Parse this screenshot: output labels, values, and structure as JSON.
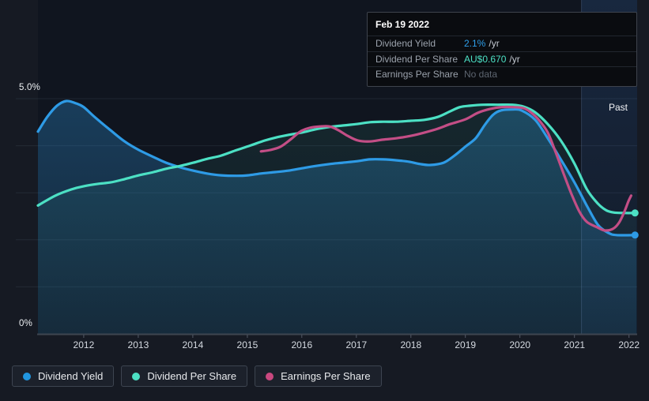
{
  "tooltip": {
    "date": "Feb 19 2022",
    "rows": [
      {
        "label": "Dividend Yield",
        "value": "2.1%",
        "suffix": "/yr",
        "value_color": "#2e9fe9"
      },
      {
        "label": "Dividend Per Share",
        "value": "AU$0.670",
        "suffix": "/yr",
        "value_color": "#4ce0c4"
      },
      {
        "label": "Earnings Per Share",
        "value": "No data",
        "suffix": "",
        "value_color": "#5d6570"
      }
    ]
  },
  "legend": [
    {
      "label": "Dividend Yield",
      "color": "#2196e0"
    },
    {
      "label": "Dividend Per Share",
      "color": "#4ce0c4"
    },
    {
      "label": "Earnings Per Share",
      "color": "#c9487f"
    }
  ],
  "chart_data": {
    "type": "line",
    "title": "",
    "xlabel": "",
    "ylabel": "",
    "y_unit": "%",
    "x_range": [
      2011.16,
      2022.15
    ],
    "y_range": [
      0,
      5
    ],
    "x_ticks": [
      "2012",
      "2013",
      "2014",
      "2015",
      "2016",
      "2017",
      "2018",
      "2019",
      "2020",
      "2021",
      "2022"
    ],
    "y_tick_labels": [
      "5.0%",
      "0%"
    ],
    "grid": true,
    "band_label": "Past",
    "band_start": 2021.13,
    "legend_position": "bottom-left",
    "series": [
      {
        "name": "Dividend Yield",
        "color": "#2e9be6",
        "fill": "gradient",
        "end_dot": true,
        "points": [
          [
            2011.16,
            4.3
          ],
          [
            2011.33,
            4.61
          ],
          [
            2011.51,
            4.85
          ],
          [
            2011.68,
            4.95
          ],
          [
            2011.86,
            4.9
          ],
          [
            2012.0,
            4.82
          ],
          [
            2012.2,
            4.61
          ],
          [
            2012.49,
            4.33
          ],
          [
            2012.75,
            4.09
          ],
          [
            2013.01,
            3.91
          ],
          [
            2013.28,
            3.76
          ],
          [
            2013.51,
            3.64
          ],
          [
            2013.77,
            3.54
          ],
          [
            2014.01,
            3.47
          ],
          [
            2014.26,
            3.41
          ],
          [
            2014.52,
            3.37
          ],
          [
            2014.81,
            3.36
          ],
          [
            2015.01,
            3.37
          ],
          [
            2015.25,
            3.41
          ],
          [
            2015.51,
            3.44
          ],
          [
            2015.75,
            3.47
          ],
          [
            2016.0,
            3.52
          ],
          [
            2016.26,
            3.57
          ],
          [
            2016.51,
            3.61
          ],
          [
            2016.75,
            3.64
          ],
          [
            2017.0,
            3.67
          ],
          [
            2017.25,
            3.71
          ],
          [
            2017.49,
            3.71
          ],
          [
            2017.74,
            3.69
          ],
          [
            2017.97,
            3.66
          ],
          [
            2018.17,
            3.61
          ],
          [
            2018.36,
            3.59
          ],
          [
            2018.6,
            3.64
          ],
          [
            2018.8,
            3.79
          ],
          [
            2019.01,
            3.99
          ],
          [
            2019.19,
            4.16
          ],
          [
            2019.36,
            4.45
          ],
          [
            2019.51,
            4.66
          ],
          [
            2019.65,
            4.75
          ],
          [
            2019.86,
            4.77
          ],
          [
            2020.03,
            4.75
          ],
          [
            2020.28,
            4.55
          ],
          [
            2020.51,
            4.16
          ],
          [
            2020.75,
            3.71
          ],
          [
            2021.0,
            3.22
          ],
          [
            2021.23,
            2.72
          ],
          [
            2021.43,
            2.32
          ],
          [
            2021.62,
            2.15
          ],
          [
            2021.77,
            2.1
          ],
          [
            2022.14,
            2.1
          ]
        ]
      },
      {
        "name": "Dividend Per Share",
        "color": "#4ce0c4",
        "fill": "subtle",
        "end_dot": true,
        "note": "plotted against % axis; value at Feb 19 2022 = AU$0.670/yr",
        "points": [
          [
            2011.16,
            2.73
          ],
          [
            2011.48,
            2.94
          ],
          [
            2011.77,
            3.07
          ],
          [
            2012.0,
            3.14
          ],
          [
            2012.26,
            3.19
          ],
          [
            2012.49,
            3.22
          ],
          [
            2012.75,
            3.29
          ],
          [
            2013.01,
            3.37
          ],
          [
            2013.28,
            3.44
          ],
          [
            2013.51,
            3.51
          ],
          [
            2013.77,
            3.57
          ],
          [
            2014.01,
            3.64
          ],
          [
            2014.26,
            3.72
          ],
          [
            2014.52,
            3.79
          ],
          [
            2014.81,
            3.91
          ],
          [
            2015.07,
            4.01
          ],
          [
            2015.32,
            4.11
          ],
          [
            2015.54,
            4.18
          ],
          [
            2015.75,
            4.23
          ],
          [
            2016.0,
            4.28
          ],
          [
            2016.26,
            4.35
          ],
          [
            2016.51,
            4.4
          ],
          [
            2016.75,
            4.43
          ],
          [
            2017.0,
            4.46
          ],
          [
            2017.25,
            4.5
          ],
          [
            2017.49,
            4.51
          ],
          [
            2017.74,
            4.51
          ],
          [
            2018.0,
            4.53
          ],
          [
            2018.25,
            4.55
          ],
          [
            2018.49,
            4.61
          ],
          [
            2018.72,
            4.73
          ],
          [
            2018.9,
            4.82
          ],
          [
            2019.09,
            4.85
          ],
          [
            2019.33,
            4.87
          ],
          [
            2019.59,
            4.87
          ],
          [
            2019.86,
            4.87
          ],
          [
            2020.07,
            4.83
          ],
          [
            2020.28,
            4.71
          ],
          [
            2020.51,
            4.46
          ],
          [
            2020.75,
            4.11
          ],
          [
            2021.0,
            3.62
          ],
          [
            2021.23,
            3.07
          ],
          [
            2021.43,
            2.77
          ],
          [
            2021.58,
            2.63
          ],
          [
            2021.72,
            2.58
          ],
          [
            2021.91,
            2.57
          ],
          [
            2022.14,
            2.57
          ]
        ]
      },
      {
        "name": "Earnings Per Share",
        "color": "#c34e86",
        "fill": "none",
        "end_dot": false,
        "note": "no data at cursor date (series ends early 2022)",
        "points": [
          [
            2015.25,
            3.88
          ],
          [
            2015.42,
            3.91
          ],
          [
            2015.61,
            3.98
          ],
          [
            2015.8,
            4.14
          ],
          [
            2015.97,
            4.3
          ],
          [
            2016.14,
            4.38
          ],
          [
            2016.33,
            4.41
          ],
          [
            2016.51,
            4.41
          ],
          [
            2016.67,
            4.33
          ],
          [
            2016.84,
            4.21
          ],
          [
            2017.03,
            4.11
          ],
          [
            2017.25,
            4.09
          ],
          [
            2017.49,
            4.13
          ],
          [
            2017.74,
            4.16
          ],
          [
            2018.0,
            4.21
          ],
          [
            2018.25,
            4.28
          ],
          [
            2018.49,
            4.36
          ],
          [
            2018.72,
            4.46
          ],
          [
            2019.0,
            4.56
          ],
          [
            2019.23,
            4.7
          ],
          [
            2019.45,
            4.78
          ],
          [
            2019.67,
            4.82
          ],
          [
            2019.88,
            4.82
          ],
          [
            2020.06,
            4.8
          ],
          [
            2020.2,
            4.71
          ],
          [
            2020.36,
            4.53
          ],
          [
            2020.51,
            4.28
          ],
          [
            2020.65,
            3.88
          ],
          [
            2020.8,
            3.41
          ],
          [
            2020.94,
            2.99
          ],
          [
            2021.09,
            2.6
          ],
          [
            2021.23,
            2.38
          ],
          [
            2021.41,
            2.27
          ],
          [
            2021.55,
            2.2
          ],
          [
            2021.7,
            2.23
          ],
          [
            2021.81,
            2.35
          ],
          [
            2021.91,
            2.58
          ],
          [
            2021.99,
            2.82
          ],
          [
            2022.04,
            2.94
          ]
        ]
      }
    ]
  }
}
